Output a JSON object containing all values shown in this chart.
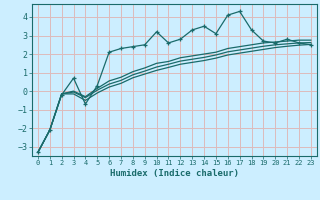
{
  "title": "",
  "xlabel": "Humidex (Indice chaleur)",
  "bg_color": "#cceeff",
  "grid_color": "#ddbbbb",
  "line_color": "#1a6b6b",
  "x_ticks": [
    0,
    1,
    2,
    3,
    4,
    5,
    6,
    7,
    8,
    9,
    10,
    11,
    12,
    13,
    14,
    15,
    16,
    17,
    18,
    19,
    20,
    21,
    22,
    23
  ],
  "ylim": [
    -3.5,
    4.7
  ],
  "xlim": [
    -0.5,
    23.5
  ],
  "yticks": [
    -3,
    -2,
    -1,
    0,
    1,
    2,
    3,
    4
  ],
  "line1_x": [
    0,
    1,
    2,
    3,
    4,
    5,
    6,
    7,
    8,
    9,
    10,
    11,
    12,
    13,
    14,
    15,
    16,
    17,
    18,
    19,
    20,
    21,
    22,
    23
  ],
  "line1_y": [
    -3.3,
    -2.1,
    -0.2,
    0.7,
    -0.7,
    0.3,
    2.1,
    2.3,
    2.4,
    2.5,
    3.2,
    2.6,
    2.8,
    3.3,
    3.5,
    3.1,
    4.1,
    4.3,
    3.3,
    2.7,
    2.6,
    2.8,
    2.6,
    2.5
  ],
  "line2_x": [
    0,
    1,
    2,
    3,
    4,
    5,
    6,
    7,
    8,
    9,
    10,
    11,
    12,
    13,
    14,
    15,
    16,
    17,
    18,
    19,
    20,
    21,
    22,
    23
  ],
  "line2_y": [
    -3.3,
    -2.1,
    -0.15,
    0.0,
    -0.3,
    0.15,
    0.55,
    0.75,
    1.05,
    1.25,
    1.5,
    1.6,
    1.8,
    1.9,
    2.0,
    2.1,
    2.3,
    2.4,
    2.5,
    2.6,
    2.65,
    2.7,
    2.75,
    2.75
  ],
  "line3_x": [
    0,
    1,
    2,
    3,
    4,
    5,
    6,
    7,
    8,
    9,
    10,
    11,
    12,
    13,
    14,
    15,
    16,
    17,
    18,
    19,
    20,
    21,
    22,
    23
  ],
  "line3_y": [
    -3.3,
    -2.1,
    -0.15,
    -0.05,
    -0.35,
    0.05,
    0.38,
    0.58,
    0.88,
    1.08,
    1.3,
    1.45,
    1.62,
    1.72,
    1.82,
    1.95,
    2.12,
    2.22,
    2.32,
    2.42,
    2.5,
    2.55,
    2.6,
    2.62
  ],
  "line4_x": [
    0,
    1,
    2,
    3,
    4,
    5,
    6,
    7,
    8,
    9,
    10,
    11,
    12,
    13,
    14,
    15,
    16,
    17,
    18,
    19,
    20,
    21,
    22,
    23
  ],
  "line4_y": [
    -3.3,
    -2.1,
    -0.15,
    -0.15,
    -0.5,
    -0.1,
    0.22,
    0.42,
    0.72,
    0.92,
    1.12,
    1.28,
    1.45,
    1.55,
    1.65,
    1.78,
    1.95,
    2.05,
    2.15,
    2.25,
    2.35,
    2.42,
    2.48,
    2.52
  ]
}
